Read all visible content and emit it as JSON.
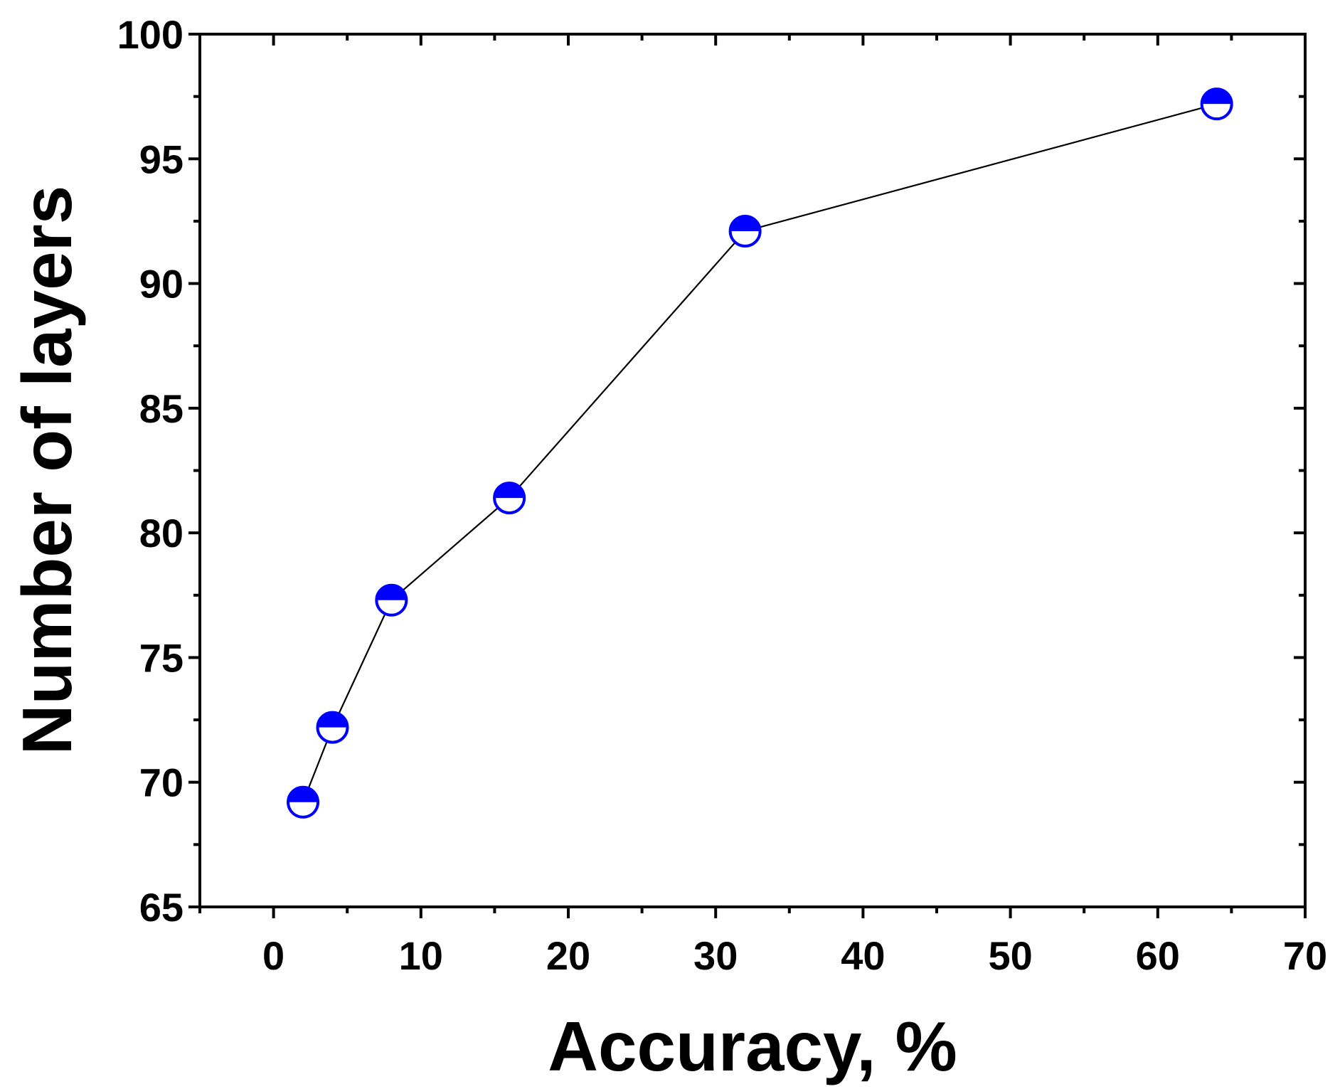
{
  "chart_data": {
    "type": "line",
    "xlabel": "Accuracy, %",
    "ylabel": "Number of layers",
    "xlim": [
      -5,
      70
    ],
    "ylim": [
      65,
      100
    ],
    "x_ticks": [
      0,
      10,
      20,
      30,
      40,
      50,
      60,
      70
    ],
    "y_ticks": [
      65,
      70,
      75,
      80,
      85,
      90,
      95,
      100
    ],
    "x_minor_step": 5,
    "y_minor_step": 2.5,
    "grid": false,
    "marker": "half-filled-circle",
    "marker_color": "#0000ff",
    "line_color": "#000000",
    "series": [
      {
        "x": [
          2,
          4,
          8,
          16,
          32,
          64
        ],
        "y": [
          69.2,
          72.2,
          77.3,
          81.4,
          92.1,
          97.2
        ]
      }
    ]
  }
}
